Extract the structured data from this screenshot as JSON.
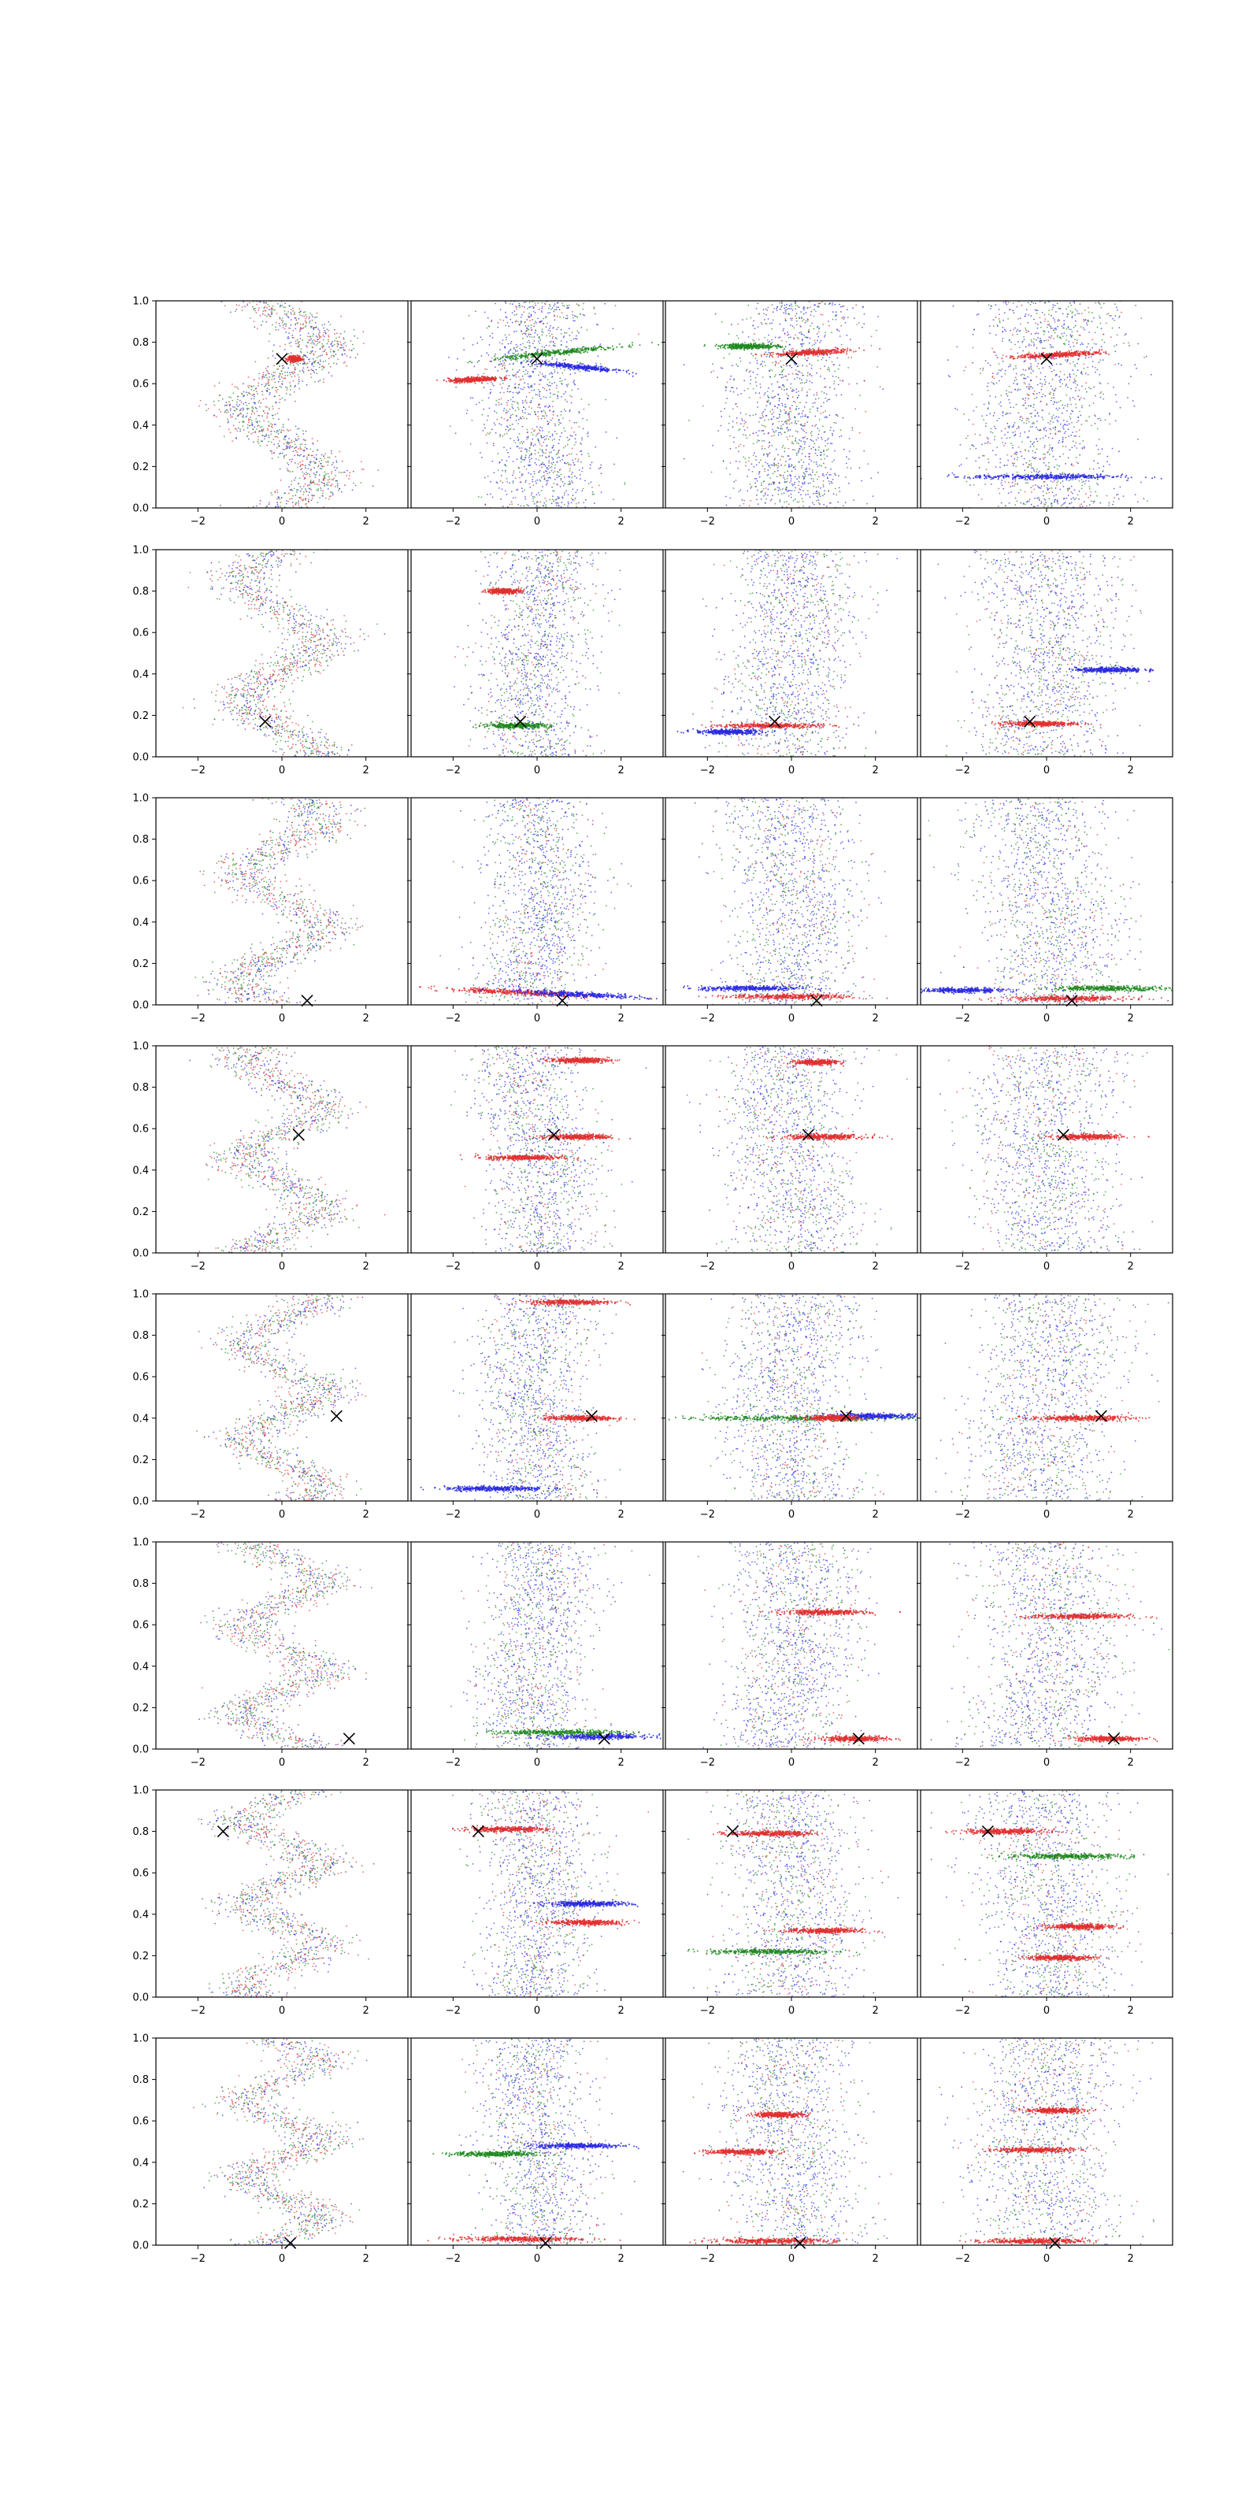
{
  "figure": {
    "rows": 8,
    "cols": 4
  },
  "colors": {
    "red": "#e03030",
    "green": "#208a20",
    "blue": "#2a2ae0",
    "marker": "#000000",
    "axes": "#000000"
  },
  "axes": {
    "xlim": [
      -3,
      3
    ],
    "ylim": [
      0,
      1
    ],
    "xticks": [
      -2,
      0,
      2
    ],
    "xtick_labels": [
      "−2",
      "0",
      "2"
    ],
    "yticks": [
      0,
      0.2,
      0.4,
      0.6,
      0.8,
      1.0
    ],
    "ytick_labels": [
      "0.0",
      "0.2",
      "0.4",
      "0.6",
      "0.8",
      "1.0"
    ],
    "ytick_labels_visible_on": "first column"
  },
  "chart_data": {
    "type": "scatter",
    "title": "",
    "xlabel": "",
    "ylabel": "",
    "grid": false,
    "legend": "none",
    "series_colors": [
      "red",
      "green",
      "blue"
    ],
    "marker": "x",
    "rows": [
      {
        "marker": [
          0.0,
          0.72
        ],
        "bands": [
          [
            {
              "y": 0.72,
              "x": 0.3,
              "spread": 0.15,
              "slope": 0.0,
              "color": "red"
            }
          ],
          [
            {
              "y": 0.62,
              "x": -1.5,
              "spread": 0.6,
              "slope": 0.01,
              "color": "red"
            },
            {
              "y": 0.75,
              "x": 0.5,
              "spread": 1.5,
              "slope": 0.02,
              "color": "green"
            },
            {
              "y": 0.68,
              "x": 1.0,
              "spread": 1.0,
              "slope": -0.02,
              "color": "blue"
            }
          ],
          [
            {
              "y": 0.75,
              "x": 0.5,
              "spread": 0.9,
              "slope": 0.01,
              "color": "red"
            },
            {
              "y": 0.78,
              "x": -1.0,
              "spread": 0.7,
              "slope": 0.0,
              "color": "green"
            }
          ],
          [
            {
              "y": 0.74,
              "x": 0.3,
              "spread": 1.0,
              "slope": 0.01,
              "color": "red"
            },
            {
              "y": 0.15,
              "x": 0.0,
              "spread": 1.8,
              "slope": 0.0,
              "color": "blue"
            }
          ]
        ]
      },
      {
        "marker": [
          -0.4,
          0.17
        ],
        "bands": [
          [],
          [
            {
              "y": 0.8,
              "x": -0.8,
              "spread": 0.4,
              "slope": 0.0,
              "color": "red"
            },
            {
              "y": 0.15,
              "x": -0.5,
              "spread": 0.8,
              "slope": 0.0,
              "color": "green"
            }
          ],
          [
            {
              "y": 0.15,
              "x": -0.5,
              "spread": 1.2,
              "slope": 0.0,
              "color": "red"
            },
            {
              "y": 0.12,
              "x": -1.5,
              "spread": 0.8,
              "slope": 0.0,
              "color": "blue"
            }
          ],
          [
            {
              "y": 0.16,
              "x": -0.2,
              "spread": 0.9,
              "slope": 0.0,
              "color": "red"
            },
            {
              "y": 0.42,
              "x": 1.5,
              "spread": 0.8,
              "slope": 0.0,
              "color": "blue"
            }
          ]
        ]
      },
      {
        "marker": [
          0.6,
          0.02
        ],
        "bands": [
          [],
          [
            {
              "y": 0.06,
              "x": -0.5,
              "spread": 1.8,
              "slope": -0.01,
              "color": "red"
            },
            {
              "y": 0.05,
              "x": 1.0,
              "spread": 1.5,
              "slope": -0.01,
              "color": "blue"
            }
          ],
          [
            {
              "y": 0.04,
              "x": 0.0,
              "spread": 1.5,
              "slope": 0.0,
              "color": "red"
            },
            {
              "y": 0.08,
              "x": -1.0,
              "spread": 1.2,
              "slope": 0.0,
              "color": "blue"
            }
          ],
          [
            {
              "y": 0.03,
              "x": 0.5,
              "spread": 1.5,
              "slope": 0.0,
              "color": "red"
            },
            {
              "y": 0.07,
              "x": -2.0,
              "spread": 1.0,
              "slope": 0.0,
              "color": "blue"
            },
            {
              "y": 0.08,
              "x": 1.5,
              "spread": 1.4,
              "slope": 0.0,
              "color": "green"
            }
          ]
        ]
      },
      {
        "marker": [
          0.4,
          0.57
        ],
        "bands": [
          [],
          [
            {
              "y": 0.93,
              "x": 1.0,
              "spread": 0.7,
              "slope": 0.0,
              "color": "red"
            },
            {
              "y": 0.56,
              "x": 1.0,
              "spread": 0.8,
              "slope": 0.0,
              "color": "red"
            },
            {
              "y": 0.46,
              "x": -0.3,
              "spread": 0.9,
              "slope": 0.0,
              "color": "red"
            }
          ],
          [
            {
              "y": 0.56,
              "x": 0.8,
              "spread": 1.0,
              "slope": 0.0,
              "color": "red"
            },
            {
              "y": 0.92,
              "x": 0.6,
              "spread": 0.5,
              "slope": 0.0,
              "color": "red"
            }
          ],
          [
            {
              "y": 0.56,
              "x": 1.0,
              "spread": 0.8,
              "slope": 0.0,
              "color": "red"
            }
          ]
        ]
      },
      {
        "marker": [
          1.3,
          0.41
        ],
        "bands": [
          [],
          [
            {
              "y": 0.96,
              "x": 0.8,
              "spread": 1.0,
              "slope": 0.0,
              "color": "red"
            },
            {
              "y": 0.4,
              "x": 1.0,
              "spread": 0.8,
              "slope": 0.0,
              "color": "red"
            },
            {
              "y": 0.06,
              "x": -1.0,
              "spread": 1.2,
              "slope": 0.0,
              "color": "blue"
            }
          ],
          [
            {
              "y": 0.4,
              "x": 0.0,
              "spread": 2.8,
              "slope": 0.0,
              "color": "green"
            },
            {
              "y": 0.41,
              "x": 2.0,
              "spread": 1.2,
              "slope": 0.0,
              "color": "blue"
            },
            {
              "y": 0.4,
              "x": 1.0,
              "spread": 0.6,
              "slope": 0.0,
              "color": "red"
            }
          ],
          [
            {
              "y": 0.4,
              "x": 0.8,
              "spread": 1.2,
              "slope": 0.0,
              "color": "red"
            }
          ]
        ]
      },
      {
        "marker": [
          1.6,
          0.05
        ],
        "bands": [
          [],
          [
            {
              "y": 0.06,
              "x": 1.5,
              "spread": 1.2,
              "slope": 0.0,
              "color": "blue"
            },
            {
              "y": 0.08,
              "x": 0.5,
              "spread": 1.5,
              "slope": 0.0,
              "color": "green"
            }
          ],
          [
            {
              "y": 0.66,
              "x": 0.8,
              "spread": 1.0,
              "slope": 0.0,
              "color": "red"
            },
            {
              "y": 0.05,
              "x": 1.5,
              "spread": 0.8,
              "slope": 0.0,
              "color": "red"
            }
          ],
          [
            {
              "y": 0.64,
              "x": 0.8,
              "spread": 1.2,
              "slope": 0.0,
              "color": "red"
            },
            {
              "y": 0.05,
              "x": 1.5,
              "spread": 0.8,
              "slope": 0.0,
              "color": "red"
            }
          ]
        ]
      },
      {
        "marker": [
          -1.4,
          0.8
        ],
        "bands": [
          [],
          [
            {
              "y": 0.81,
              "x": -0.8,
              "spread": 1.0,
              "slope": 0.0,
              "color": "red"
            },
            {
              "y": 0.36,
              "x": 1.2,
              "spread": 0.9,
              "slope": 0.0,
              "color": "red"
            },
            {
              "y": 0.45,
              "x": 1.2,
              "spread": 1.0,
              "slope": 0.0,
              "color": "blue"
            }
          ],
          [
            {
              "y": 0.79,
              "x": -0.5,
              "spread": 1.0,
              "slope": 0.0,
              "color": "red"
            },
            {
              "y": 0.32,
              "x": 0.8,
              "spread": 0.9,
              "slope": 0.0,
              "color": "red"
            },
            {
              "y": 0.22,
              "x": -0.5,
              "spread": 1.5,
              "slope": 0.0,
              "color": "green"
            }
          ],
          [
            {
              "y": 0.8,
              "x": -1.0,
              "spread": 1.0,
              "slope": 0.0,
              "color": "red"
            },
            {
              "y": 0.34,
              "x": 0.8,
              "spread": 0.8,
              "slope": 0.0,
              "color": "red"
            },
            {
              "y": 0.19,
              "x": 0.3,
              "spread": 0.8,
              "slope": 0.0,
              "color": "red"
            },
            {
              "y": 0.68,
              "x": 0.5,
              "spread": 1.5,
              "slope": 0.0,
              "color": "green"
            }
          ]
        ]
      },
      {
        "marker": [
          0.2,
          0.01
        ],
        "bands": [
          [],
          [
            {
              "y": 0.44,
              "x": -1.0,
              "spread": 1.0,
              "slope": 0.0,
              "color": "green"
            },
            {
              "y": 0.48,
              "x": 1.0,
              "spread": 1.0,
              "slope": 0.0,
              "color": "blue"
            },
            {
              "y": 0.03,
              "x": -0.5,
              "spread": 1.5,
              "slope": 0.0,
              "color": "red"
            }
          ],
          [
            {
              "y": 0.45,
              "x": -1.2,
              "spread": 0.8,
              "slope": 0.0,
              "color": "red"
            },
            {
              "y": 0.63,
              "x": -0.3,
              "spread": 0.6,
              "slope": 0.0,
              "color": "red"
            },
            {
              "y": 0.02,
              "x": -0.5,
              "spread": 1.5,
              "slope": 0.0,
              "color": "red"
            }
          ],
          [
            {
              "y": 0.46,
              "x": -0.3,
              "spread": 0.9,
              "slope": 0.0,
              "color": "red"
            },
            {
              "y": 0.65,
              "x": 0.2,
              "spread": 0.7,
              "slope": 0.0,
              "color": "red"
            },
            {
              "y": 0.02,
              "x": -0.3,
              "spread": 1.2,
              "slope": 0.0,
              "color": "red"
            }
          ]
        ]
      }
    ]
  }
}
